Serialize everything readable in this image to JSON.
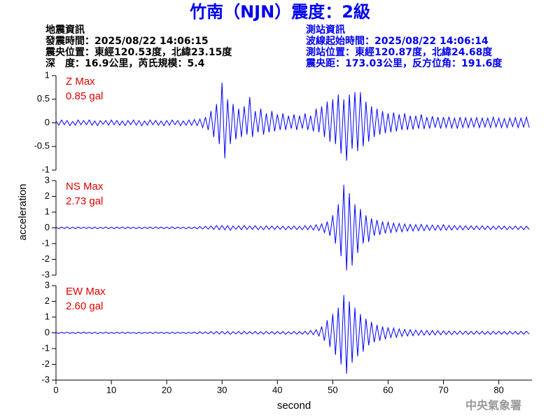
{
  "header": {
    "title": "竹南（NJN）震度：2級",
    "left": [
      "地震資訊",
      "發震時間：2025/08/22 14:06:15",
      "震央位置：東經120.53度，北緯23.15度",
      "深　度：16.9公里，芮氏規模：5.4"
    ],
    "right": [
      "測站資訊",
      "波線起始時間：2025/08/22 14:06:14",
      "測站位置：東經120.87度，北緯24.68度",
      "震央距：173.03公里，反方位角：191.6度"
    ],
    "footer": "中央氣象署"
  },
  "chart_data": [
    {
      "type": "line",
      "ylabel": "acceleration",
      "max_label": "Z Max",
      "max_value_label": "0.85 gal",
      "color": "#0000ff",
      "xlim": [
        0,
        86
      ],
      "ylim": [
        -1,
        1
      ],
      "yticks": [
        1,
        0.5,
        0,
        -0.5,
        -1
      ],
      "x": [
        0,
        0.5,
        1,
        1.5,
        2,
        2.5,
        3,
        3.5,
        4,
        4.5,
        5,
        5.5,
        6,
        6.5,
        7,
        7.5,
        8,
        8.5,
        9,
        9.5,
        10,
        10.5,
        11,
        11.5,
        12,
        12.5,
        13,
        13.5,
        14,
        14.5,
        15,
        15.5,
        16,
        16.5,
        17,
        17.5,
        18,
        18.5,
        19,
        19.5,
        20,
        20.5,
        21,
        21.5,
        22,
        22.5,
        23,
        23.5,
        24,
        24.5,
        25,
        25.5,
        26,
        26.5,
        27,
        27.5,
        28,
        28.5,
        29,
        29.5,
        30,
        30.5,
        31,
        31.5,
        32,
        32.5,
        33,
        33.5,
        34,
        34.5,
        35,
        35.5,
        36,
        36.5,
        37,
        37.5,
        38,
        38.5,
        39,
        39.5,
        40,
        40.5,
        41,
        41.5,
        42,
        42.5,
        43,
        43.5,
        44,
        44.5,
        45,
        45.5,
        46,
        46.5,
        47,
        47.5,
        48,
        48.5,
        49,
        49.5,
        50,
        50.5,
        51,
        51.5,
        52,
        52.5,
        53,
        53.5,
        54,
        54.5,
        55,
        55.5,
        56,
        56.5,
        57,
        57.5,
        58,
        58.5,
        59,
        59.5,
        60,
        60.5,
        61,
        61.5,
        62,
        62.5,
        63,
        63.5,
        64,
        64.5,
        65,
        65.5,
        66,
        66.5,
        67,
        67.5,
        68,
        68.5,
        69,
        69.5,
        70,
        70.5,
        71,
        71.5,
        72,
        72.5,
        73,
        73.5,
        74,
        74.5,
        75,
        75.5,
        76,
        76.5,
        77,
        77.5,
        78,
        78.5,
        79,
        79.5,
        80,
        80.5,
        81,
        81.5,
        82,
        82.5,
        83,
        83.5,
        84,
        84.5,
        85,
        85.5
      ],
      "values": [
        0.04,
        -0.05,
        0.06,
        -0.04,
        0.05,
        -0.06,
        0.03,
        -0.05,
        0.06,
        -0.04,
        0.05,
        -0.04,
        0.06,
        -0.05,
        0.04,
        -0.06,
        0.05,
        -0.03,
        0.05,
        -0.05,
        0.06,
        -0.04,
        0.05,
        -0.05,
        0.04,
        -0.06,
        0.05,
        -0.04,
        0.06,
        -0.05,
        0.05,
        -0.06,
        0.04,
        -0.05,
        0.06,
        -0.04,
        0.05,
        -0.05,
        0.04,
        -0.06,
        0.05,
        -0.05,
        0.06,
        -0.04,
        0.05,
        -0.06,
        0.04,
        -0.05,
        0.06,
        -0.05,
        0.07,
        -0.06,
        0.08,
        -0.1,
        0.12,
        -0.15,
        0.25,
        -0.3,
        0.4,
        -0.45,
        0.85,
        -0.75,
        0.5,
        -0.45,
        0.4,
        -0.35,
        0.3,
        -0.3,
        0.35,
        -0.25,
        0.55,
        -0.3,
        0.25,
        -0.2,
        0.3,
        -0.25,
        0.2,
        -0.2,
        0.25,
        -0.18,
        0.18,
        -0.15,
        0.2,
        -0.15,
        0.15,
        -0.12,
        0.18,
        -0.15,
        0.15,
        -0.12,
        0.2,
        -0.15,
        0.15,
        -0.18,
        0.3,
        -0.2,
        0.35,
        -0.3,
        0.45,
        -0.4,
        0.5,
        -0.45,
        0.6,
        -0.65,
        0.5,
        -0.8,
        0.6,
        -0.55,
        0.65,
        -0.6,
        0.65,
        -0.5,
        0.45,
        -0.4,
        0.35,
        -0.3,
        0.3,
        -0.25,
        0.25,
        -0.22,
        0.2,
        -0.2,
        0.22,
        -0.18,
        0.18,
        -0.15,
        0.2,
        -0.15,
        0.15,
        -0.14,
        0.15,
        -0.12,
        0.18,
        -0.13,
        0.12,
        -0.12,
        0.14,
        -0.1,
        0.12,
        -0.12,
        0.12,
        -0.1,
        0.13,
        -0.11,
        0.1,
        -0.12,
        0.12,
        -0.1,
        0.11,
        -0.1,
        0.1,
        -0.09,
        0.11,
        -0.1,
        0.1,
        -0.09,
        0.1,
        -0.1,
        0.12,
        -0.09,
        0.1,
        -0.1,
        0.09,
        -0.1,
        0.1,
        -0.08,
        0.11,
        -0.1,
        0.1,
        -0.09,
        0.12,
        -0.1
      ]
    },
    {
      "type": "line",
      "max_label": "NS Max",
      "max_value_label": "2.73 gal",
      "color": "#0000ff",
      "xlim": [
        0,
        86
      ],
      "ylim": [
        -3,
        3
      ],
      "yticks": [
        3,
        2,
        1,
        0,
        -1,
        -2,
        -3
      ],
      "x": [
        0,
        0.5,
        1,
        1.5,
        2,
        2.5,
        3,
        3.5,
        4,
        4.5,
        5,
        5.5,
        6,
        6.5,
        7,
        7.5,
        8,
        8.5,
        9,
        9.5,
        10,
        10.5,
        11,
        11.5,
        12,
        12.5,
        13,
        13.5,
        14,
        14.5,
        15,
        15.5,
        16,
        16.5,
        17,
        17.5,
        18,
        18.5,
        19,
        19.5,
        20,
        20.5,
        21,
        21.5,
        22,
        22.5,
        23,
        23.5,
        24,
        24.5,
        25,
        25.5,
        26,
        26.5,
        27,
        27.5,
        28,
        28.5,
        29,
        29.5,
        30,
        30.5,
        31,
        31.5,
        32,
        32.5,
        33,
        33.5,
        34,
        34.5,
        35,
        35.5,
        36,
        36.5,
        37,
        37.5,
        38,
        38.5,
        39,
        39.5,
        40,
        40.5,
        41,
        41.5,
        42,
        42.5,
        43,
        43.5,
        44,
        44.5,
        45,
        45.5,
        46,
        46.5,
        47,
        47.5,
        48,
        48.5,
        49,
        49.5,
        50,
        50.5,
        51,
        51.5,
        52,
        52.5,
        53,
        53.5,
        54,
        54.5,
        55,
        55.5,
        56,
        56.5,
        57,
        57.5,
        58,
        58.5,
        59,
        59.5,
        60,
        60.5,
        61,
        61.5,
        62,
        62.5,
        63,
        63.5,
        64,
        64.5,
        65,
        65.5,
        66,
        66.5,
        67,
        67.5,
        68,
        68.5,
        69,
        69.5,
        70,
        70.5,
        71,
        71.5,
        72,
        72.5,
        73,
        73.5,
        74,
        74.5,
        75,
        75.5,
        76,
        76.5,
        77,
        77.5,
        78,
        78.5,
        79,
        79.5,
        80,
        80.5,
        81,
        81.5,
        82,
        82.5,
        83,
        83.5,
        84,
        84.5,
        85,
        85.5
      ],
      "values": [
        0.04,
        -0.05,
        0.05,
        -0.04,
        0.06,
        -0.05,
        0.04,
        -0.05,
        0.05,
        -0.04,
        0.05,
        -0.04,
        0.04,
        -0.05,
        0.05,
        -0.06,
        0.04,
        -0.04,
        0.06,
        -0.05,
        0.04,
        -0.05,
        0.05,
        -0.04,
        0.06,
        -0.05,
        0.05,
        -0.04,
        0.04,
        -0.06,
        0.05,
        -0.05,
        0.04,
        -0.04,
        0.05,
        -0.05,
        0.06,
        -0.04,
        0.05,
        -0.05,
        0.04,
        -0.05,
        0.06,
        -0.05,
        0.05,
        -0.04,
        0.04,
        -0.06,
        0.05,
        -0.05,
        0.05,
        -0.06,
        0.08,
        -0.07,
        0.1,
        -0.08,
        0.12,
        -0.1,
        0.15,
        -0.12,
        0.15,
        -0.12,
        0.14,
        -0.15,
        0.12,
        -0.1,
        0.13,
        -0.12,
        0.15,
        -0.1,
        0.12,
        -0.1,
        0.14,
        -0.12,
        0.1,
        -0.12,
        0.13,
        -0.1,
        0.12,
        -0.11,
        0.12,
        -0.1,
        0.11,
        -0.12,
        0.1,
        -0.1,
        0.12,
        -0.11,
        0.1,
        -0.12,
        0.14,
        -0.12,
        0.15,
        -0.14,
        0.2,
        -0.18,
        0.25,
        -0.3,
        0.4,
        -0.5,
        0.8,
        -1.0,
        1.5,
        -1.8,
        2.73,
        -2.7,
        2.2,
        -2.4,
        1.5,
        -1.6,
        1.2,
        -1.0,
        0.8,
        -0.9,
        0.6,
        -0.5,
        0.5,
        -0.45,
        0.4,
        -0.35,
        0.35,
        -0.3,
        0.3,
        -0.25,
        0.28,
        -0.25,
        0.25,
        -0.2,
        0.22,
        -0.2,
        0.2,
        -0.18,
        0.22,
        -0.18,
        0.18,
        -0.16,
        0.18,
        -0.15,
        0.16,
        -0.15,
        0.2,
        -0.15,
        0.15,
        -0.14,
        0.15,
        -0.12,
        0.14,
        -0.13,
        0.14,
        -0.12,
        0.13,
        -0.12,
        0.12,
        -0.12,
        0.13,
        -0.11,
        0.12,
        -0.12,
        0.11,
        -0.1,
        0.12,
        -0.1,
        0.11,
        -0.12,
        0.1,
        -0.1,
        0.12,
        -0.11,
        0.1,
        -0.12,
        0.11,
        -0.1
      ]
    },
    {
      "type": "line",
      "xlabel": "second",
      "max_label": "EW Max",
      "max_value_label": "2.60 gal",
      "color": "#0000ff",
      "xlim": [
        0,
        86
      ],
      "xticks": [
        0,
        10,
        20,
        30,
        40,
        50,
        60,
        70,
        80
      ],
      "ylim": [
        -3,
        3
      ],
      "yticks": [
        3,
        2,
        1,
        0,
        -1,
        -2,
        -3
      ],
      "x": [
        0,
        0.5,
        1,
        1.5,
        2,
        2.5,
        3,
        3.5,
        4,
        4.5,
        5,
        5.5,
        6,
        6.5,
        7,
        7.5,
        8,
        8.5,
        9,
        9.5,
        10,
        10.5,
        11,
        11.5,
        12,
        12.5,
        13,
        13.5,
        14,
        14.5,
        15,
        15.5,
        16,
        16.5,
        17,
        17.5,
        18,
        18.5,
        19,
        19.5,
        20,
        20.5,
        21,
        21.5,
        22,
        22.5,
        23,
        23.5,
        24,
        24.5,
        25,
        25.5,
        26,
        26.5,
        27,
        27.5,
        28,
        28.5,
        29,
        29.5,
        30,
        30.5,
        31,
        31.5,
        32,
        32.5,
        33,
        33.5,
        34,
        34.5,
        35,
        35.5,
        36,
        36.5,
        37,
        37.5,
        38,
        38.5,
        39,
        39.5,
        40,
        40.5,
        41,
        41.5,
        42,
        42.5,
        43,
        43.5,
        44,
        44.5,
        45,
        45.5,
        46,
        46.5,
        47,
        47.5,
        48,
        48.5,
        49,
        49.5,
        50,
        50.5,
        51,
        51.5,
        52,
        52.5,
        53,
        53.5,
        54,
        54.5,
        55,
        55.5,
        56,
        56.5,
        57,
        57.5,
        58,
        58.5,
        59,
        59.5,
        60,
        60.5,
        61,
        61.5,
        62,
        62.5,
        63,
        63.5,
        64,
        64.5,
        65,
        65.5,
        66,
        66.5,
        67,
        67.5,
        68,
        68.5,
        69,
        69.5,
        70,
        70.5,
        71,
        71.5,
        72,
        72.5,
        73,
        73.5,
        74,
        74.5,
        75,
        75.5,
        76,
        76.5,
        77,
        77.5,
        78,
        78.5,
        79,
        79.5,
        80,
        80.5,
        81,
        81.5,
        82,
        82.5,
        83,
        83.5,
        84,
        84.5,
        85,
        85.5
      ],
      "values": [
        0.03,
        -0.04,
        0.04,
        -0.03,
        0.05,
        -0.04,
        0.03,
        -0.04,
        0.04,
        -0.03,
        0.04,
        -0.03,
        0.03,
        -0.04,
        0.04,
        -0.05,
        0.03,
        -0.03,
        0.05,
        -0.04,
        0.03,
        -0.04,
        0.04,
        -0.03,
        0.05,
        -0.04,
        0.04,
        -0.03,
        0.03,
        -0.05,
        0.04,
        -0.04,
        0.03,
        -0.03,
        0.04,
        -0.04,
        0.05,
        -0.03,
        0.04,
        -0.04,
        0.03,
        -0.04,
        0.05,
        -0.04,
        0.04,
        -0.03,
        0.03,
        -0.05,
        0.04,
        -0.04,
        0.05,
        -0.05,
        0.06,
        -0.05,
        0.07,
        -0.06,
        0.08,
        -0.07,
        0.09,
        -0.08,
        0.1,
        -0.08,
        0.09,
        -0.1,
        0.08,
        -0.07,
        0.09,
        -0.08,
        0.1,
        -0.07,
        0.08,
        -0.07,
        0.09,
        -0.08,
        0.07,
        -0.08,
        0.09,
        -0.07,
        0.08,
        -0.08,
        0.09,
        -0.07,
        0.08,
        -0.09,
        0.07,
        -0.07,
        0.09,
        -0.08,
        0.08,
        -0.09,
        0.1,
        -0.1,
        0.15,
        -0.12,
        0.2,
        -0.2,
        0.4,
        -0.5,
        0.8,
        -0.9,
        1.2,
        -1.4,
        1.6,
        -2.0,
        2.4,
        -2.6,
        2.0,
        -1.9,
        1.6,
        -1.5,
        1.2,
        -1.2,
        0.9,
        -0.8,
        0.7,
        -0.6,
        0.5,
        -0.5,
        0.4,
        -0.4,
        0.35,
        -0.3,
        0.3,
        -0.28,
        0.25,
        -0.22,
        0.22,
        -0.2,
        0.2,
        -0.18,
        0.18,
        -0.16,
        0.16,
        -0.15,
        0.15,
        -0.14,
        0.15,
        -0.13,
        0.14,
        -0.12,
        0.13,
        -0.11,
        0.12,
        -0.12,
        0.11,
        -0.1,
        0.12,
        -0.1,
        0.11,
        -0.1,
        0.1,
        -0.1,
        0.11,
        -0.09,
        0.1,
        -0.1,
        0.09,
        -0.1,
        0.1,
        -0.09,
        0.1,
        -0.09,
        0.09,
        -0.1,
        0.1,
        -0.08,
        0.09,
        -0.1,
        0.1,
        -0.09,
        0.1,
        -0.08
      ]
    }
  ]
}
